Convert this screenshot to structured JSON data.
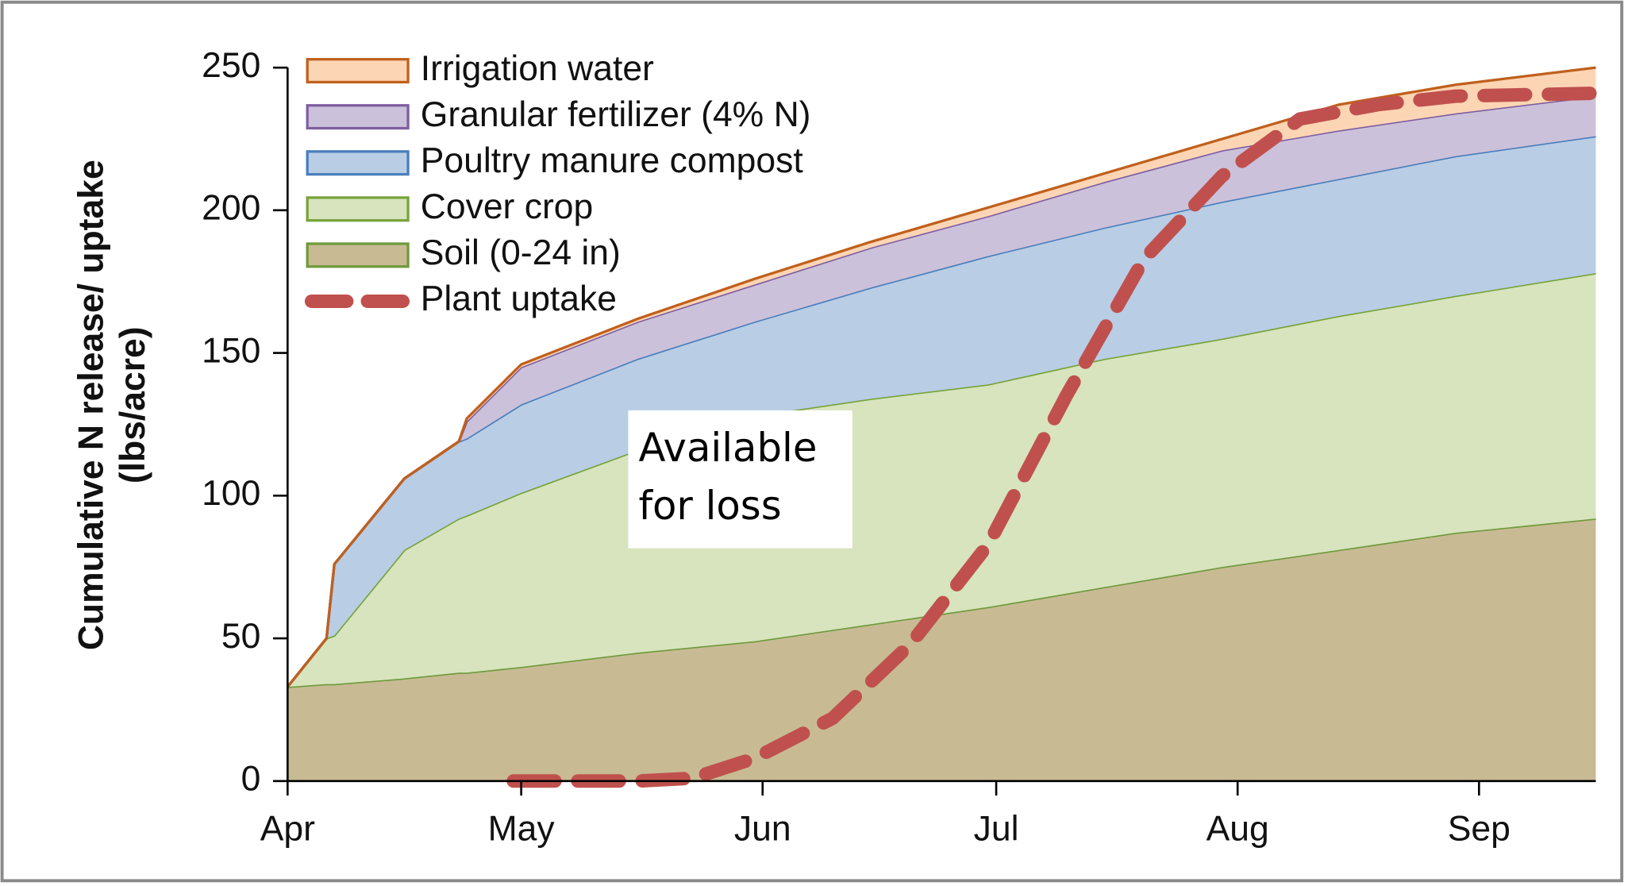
{
  "chart_data": {
    "type": "stacked_area",
    "ylabel": [
      "Cumulative N release/ uptake",
      "(lbs/acre)"
    ],
    "annotation": "Available for loss",
    "x": [
      0,
      5,
      6,
      15,
      22,
      23,
      30,
      45,
      60,
      75,
      90,
      105,
      120,
      135,
      150,
      168
    ],
    "xlim": [
      0,
      168
    ],
    "xticks": [
      {
        "value": 0,
        "label": "Apr"
      },
      {
        "value": 30,
        "label": "May"
      },
      {
        "value": 61,
        "label": "Jun"
      },
      {
        "value": 91,
        "label": "Jul"
      },
      {
        "value": 122,
        "label": "Aug"
      },
      {
        "value": 153,
        "label": "Sep"
      }
    ],
    "ylim": [
      0,
      250
    ],
    "yticks": [
      0,
      50,
      100,
      150,
      200,
      250
    ],
    "series": [
      {
        "name": "Irrigation water",
        "color": "#fcd5b5",
        "line_color": "#c0601c",
        "values": [
          0,
          0,
          0,
          0,
          0,
          1,
          1,
          1,
          2,
          2,
          3,
          3,
          4,
          9,
          10,
          10
        ]
      },
      {
        "name": "Granular fertilizer (4% N)",
        "color": "#ccc1da",
        "line_color": "#7e5fa0",
        "values": [
          0,
          0,
          0,
          0,
          0,
          6,
          13,
          13,
          13,
          14,
          14,
          16,
          18,
          17,
          15,
          14
        ]
      },
      {
        "name": "Poultry manure compost",
        "color": "#b9cde5",
        "line_color": "#4a7ebb",
        "values": [
          0,
          0,
          25,
          25,
          27,
          27,
          31,
          32,
          33,
          39,
          45,
          46,
          48,
          48,
          49,
          48
        ]
      },
      {
        "name": "Cover crop",
        "color": "#d7e4bd",
        "line_color": "#77a33a",
        "values": [
          0,
          16,
          17,
          45,
          54,
          55,
          61,
          71,
          79,
          79,
          78,
          80,
          80,
          82,
          83,
          86
        ]
      },
      {
        "name": "Soil (0-24 in)",
        "color": "#c8bb94",
        "line_color": "#6f9a3c",
        "values": [
          33,
          34,
          34,
          36,
          38,
          38,
          40,
          45,
          49,
          55,
          61,
          68,
          75,
          81,
          87,
          92
        ]
      },
      {
        "name": "Plant uptake",
        "type": "line",
        "dashed": true,
        "color": "#c0504d",
        "x": [
          29,
          45,
          52,
          60,
          70,
          80,
          90,
          100,
          110,
          120,
          130,
          140,
          150,
          168
        ],
        "values": [
          0,
          0,
          1,
          8,
          22,
          48,
          83,
          135,
          183,
          212,
          232,
          237,
          240,
          241
        ]
      }
    ]
  }
}
